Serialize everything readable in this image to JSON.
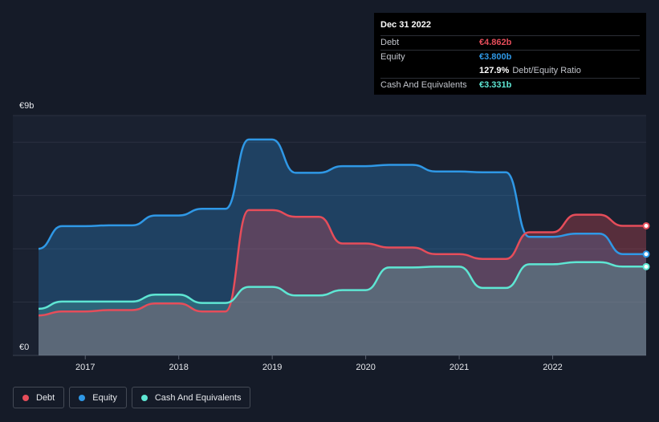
{
  "tooltip": {
    "date": "Dec 31 2022",
    "rows": [
      {
        "label": "Debt",
        "value": "€4.862b",
        "color": "#e64d5a"
      },
      {
        "label": "Equity",
        "value": "€3.800b",
        "color": "#2f98e6"
      },
      {
        "label": "",
        "value": "127.9%",
        "suffix": "Debt/Equity Ratio",
        "color": "#ffffff"
      },
      {
        "label": "Cash And Equivalents",
        "value": "€3.331b",
        "color": "#5ee6d3"
      }
    ]
  },
  "legend": [
    {
      "label": "Debt",
      "color": "#e64d5a"
    },
    {
      "label": "Equity",
      "color": "#2f98e6"
    },
    {
      "label": "Cash And Equivalents",
      "color": "#5ee6d3"
    }
  ],
  "chart_data": {
    "type": "area",
    "y_top_label": "€9b",
    "y_bottom_label": "€0",
    "ylim": [
      0,
      9
    ],
    "xlim": [
      2016.5,
      2023.0
    ],
    "x_ticks": [
      {
        "x": 2017,
        "label": "2017"
      },
      {
        "x": 2018,
        "label": "2018"
      },
      {
        "x": 2019,
        "label": "2019"
      },
      {
        "x": 2020,
        "label": "2020"
      },
      {
        "x": 2021,
        "label": "2021"
      },
      {
        "x": 2022,
        "label": "2022"
      }
    ],
    "grid": true,
    "series": [
      {
        "name": "Equity",
        "color": "#2f98e6",
        "points": [
          [
            2016.5,
            4.0
          ],
          [
            2016.75,
            4.85
          ],
          [
            2017.0,
            4.85
          ],
          [
            2017.25,
            4.88
          ],
          [
            2017.5,
            4.88
          ],
          [
            2017.75,
            5.25
          ],
          [
            2018.0,
            5.25
          ],
          [
            2018.25,
            5.5
          ],
          [
            2018.5,
            5.5
          ],
          [
            2018.75,
            8.1
          ],
          [
            2019.0,
            8.1
          ],
          [
            2019.25,
            6.85
          ],
          [
            2019.5,
            6.85
          ],
          [
            2019.75,
            7.1
          ],
          [
            2020.0,
            7.1
          ],
          [
            2020.25,
            7.15
          ],
          [
            2020.5,
            7.15
          ],
          [
            2020.75,
            6.9
          ],
          [
            2021.0,
            6.9
          ],
          [
            2021.25,
            6.87
          ],
          [
            2021.5,
            6.87
          ],
          [
            2021.75,
            4.45
          ],
          [
            2022.0,
            4.45
          ],
          [
            2022.25,
            4.57
          ],
          [
            2022.5,
            4.57
          ],
          [
            2022.75,
            3.8
          ],
          [
            2023.0,
            3.8
          ]
        ]
      },
      {
        "name": "Debt",
        "color": "#e64d5a",
        "points": [
          [
            2016.5,
            1.5
          ],
          [
            2016.75,
            1.65
          ],
          [
            2017.0,
            1.65
          ],
          [
            2017.25,
            1.7
          ],
          [
            2017.5,
            1.7
          ],
          [
            2017.75,
            1.95
          ],
          [
            2018.0,
            1.95
          ],
          [
            2018.25,
            1.65
          ],
          [
            2018.5,
            1.65
          ],
          [
            2018.75,
            5.45
          ],
          [
            2019.0,
            5.45
          ],
          [
            2019.25,
            5.2
          ],
          [
            2019.5,
            5.2
          ],
          [
            2019.75,
            4.2
          ],
          [
            2020.0,
            4.2
          ],
          [
            2020.25,
            4.05
          ],
          [
            2020.5,
            4.05
          ],
          [
            2020.75,
            3.8
          ],
          [
            2021.0,
            3.8
          ],
          [
            2021.25,
            3.62
          ],
          [
            2021.5,
            3.62
          ],
          [
            2021.75,
            4.62
          ],
          [
            2022.0,
            4.62
          ],
          [
            2022.25,
            5.28
          ],
          [
            2022.5,
            5.28
          ],
          [
            2022.75,
            4.862
          ],
          [
            2023.0,
            4.862
          ]
        ]
      },
      {
        "name": "Cash And Equivalents",
        "color": "#5ee6d3",
        "points": [
          [
            2016.5,
            1.75
          ],
          [
            2016.75,
            2.02
          ],
          [
            2017.0,
            2.02
          ],
          [
            2017.25,
            2.02
          ],
          [
            2017.5,
            2.02
          ],
          [
            2017.75,
            2.28
          ],
          [
            2018.0,
            2.28
          ],
          [
            2018.25,
            1.97
          ],
          [
            2018.5,
            1.97
          ],
          [
            2018.75,
            2.57
          ],
          [
            2019.0,
            2.57
          ],
          [
            2019.25,
            2.25
          ],
          [
            2019.5,
            2.25
          ],
          [
            2019.75,
            2.45
          ],
          [
            2020.0,
            2.45
          ],
          [
            2020.25,
            3.3
          ],
          [
            2020.5,
            3.3
          ],
          [
            2020.75,
            3.33
          ],
          [
            2021.0,
            3.33
          ],
          [
            2021.25,
            2.53
          ],
          [
            2021.5,
            2.53
          ],
          [
            2021.75,
            3.42
          ],
          [
            2022.0,
            3.42
          ],
          [
            2022.25,
            3.5
          ],
          [
            2022.5,
            3.5
          ],
          [
            2022.75,
            3.331
          ],
          [
            2023.0,
            3.331
          ]
        ]
      }
    ]
  }
}
